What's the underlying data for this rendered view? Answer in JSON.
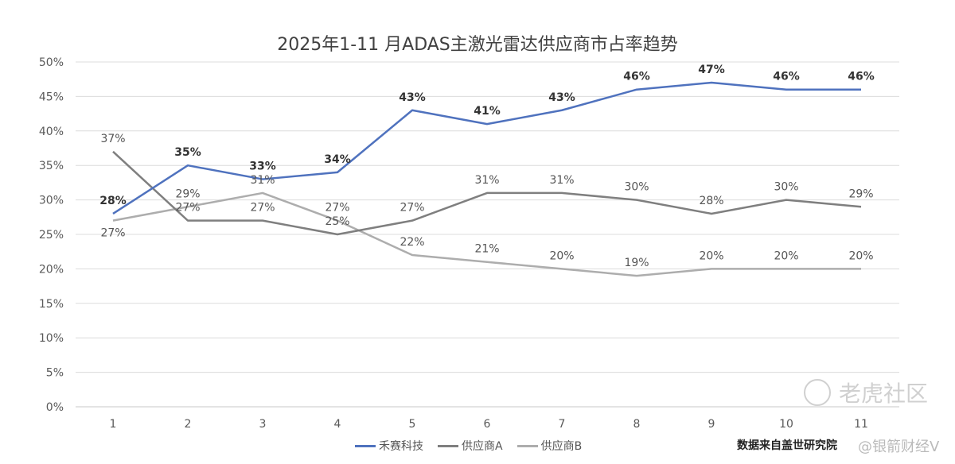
{
  "chart_data": {
    "type": "line",
    "title": "2025年1-11 月ADAS主激光雷达供应商市占率趋势",
    "xlabel": "",
    "ylabel": "",
    "x": [
      "1",
      "2",
      "3",
      "4",
      "5",
      "6",
      "7",
      "8",
      "9",
      "10",
      "11"
    ],
    "ylim": [
      0,
      50
    ],
    "yticks": [
      "0%",
      "5%",
      "10%",
      "15%",
      "20%",
      "25%",
      "30%",
      "35%",
      "40%",
      "45%",
      "50%"
    ],
    "grid": true,
    "legend_position": "bottom",
    "series": [
      {
        "name": "禾赛科技",
        "color": "#4f72be",
        "bold_labels": true,
        "values": [
          28,
          35,
          33,
          34,
          43,
          41,
          43,
          46,
          47,
          46,
          46
        ]
      },
      {
        "name": "供应商A",
        "color": "#7f7f7f",
        "bold_labels": false,
        "values": [
          37,
          27,
          27,
          25,
          27,
          31,
          31,
          30,
          28,
          30,
          29
        ]
      },
      {
        "name": "供应商B",
        "color": "#adadad",
        "bold_labels": false,
        "values": [
          27,
          29,
          31,
          27,
          22,
          21,
          20,
          19,
          20,
          20,
          20
        ]
      }
    ]
  },
  "source_note": "数据来自盖世研究院",
  "watermark": {
    "primary": "老虎社区",
    "secondary": "@银箭财经V"
  }
}
